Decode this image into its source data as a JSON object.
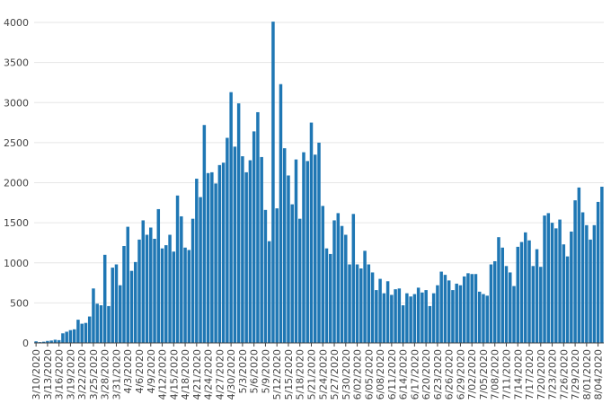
{
  "chart_data": {
    "type": "bar",
    "color": "#1f77b4",
    "grid": true,
    "ylim": [
      0,
      4000
    ],
    "yticks": [
      0,
      500,
      1000,
      1500,
      2000,
      2500,
      3000,
      3500,
      4000
    ],
    "xticks": [
      "3/10/2020",
      "3/13/2020",
      "3/16/2020",
      "3/19/2020",
      "3/22/2020",
      "3/25/2020",
      "3/28/2020",
      "3/31/2020",
      "4/3/2020",
      "4/6/2020",
      "4/9/2020",
      "4/12/2020",
      "4/15/2020",
      "4/18/2020",
      "4/21/2020",
      "4/24/2020",
      "4/27/2020",
      "4/30/2020",
      "5/3/2020",
      "5/6/2020",
      "5/9/2020",
      "5/12/2020",
      "5/15/2020",
      "5/18/2020",
      "5/21/2020",
      "5/24/2020",
      "5/27/2020",
      "5/30/2020",
      "6/02/2020",
      "6/05/2020",
      "6/08/2020",
      "6/11/2020",
      "6/14/2020",
      "6/17/2020",
      "6/20/2020",
      "6/23/2020",
      "6/26/2020",
      "6/29/2020",
      "7/02/2020",
      "7/05/2020",
      "7/08/2020",
      "7/11/2020",
      "7/14/2020",
      "7/17/2020",
      "7/20/2020",
      "7/23/2020",
      "7/26/2020",
      "7/29/2020",
      "8/01/2020",
      "8/04/2020"
    ],
    "values": [
      20,
      10,
      15,
      25,
      30,
      40,
      35,
      120,
      140,
      160,
      170,
      290,
      240,
      250,
      330,
      680,
      490,
      470,
      1100,
      460,
      940,
      980,
      720,
      1210,
      1450,
      900,
      1010,
      1290,
      1530,
      1350,
      1440,
      1300,
      1670,
      1180,
      1220,
      1350,
      1140,
      1840,
      1580,
      1190,
      1160,
      1550,
      2050,
      1820,
      2720,
      2120,
      2130,
      1990,
      2220,
      2250,
      2560,
      3130,
      2450,
      2990,
      2330,
      2130,
      2280,
      2640,
      2880,
      2320,
      1660,
      1270,
      4010,
      1680,
      3230,
      2430,
      2090,
      1730,
      2290,
      1550,
      2380,
      2270,
      2750,
      2350,
      2500,
      1710,
      1180,
      1110,
      1530,
      1620,
      1460,
      1350,
      980,
      1610,
      980,
      930,
      1150,
      980,
      880,
      660,
      800,
      620,
      770,
      600,
      670,
      680,
      470,
      620,
      580,
      610,
      690,
      630,
      660,
      460,
      620,
      720,
      890,
      850,
      780,
      660,
      740,
      720,
      830,
      870,
      860,
      860,
      640,
      610,
      590,
      980,
      1020,
      1320,
      1190,
      960,
      880,
      710,
      1200,
      1260,
      1380,
      1280,
      960,
      1170,
      950,
      1590,
      1620,
      1500,
      1430,
      1540,
      1230,
      1080,
      1390,
      1780,
      1940,
      1630,
      1470,
      1290,
      1470,
      1760,
      1950
    ]
  }
}
